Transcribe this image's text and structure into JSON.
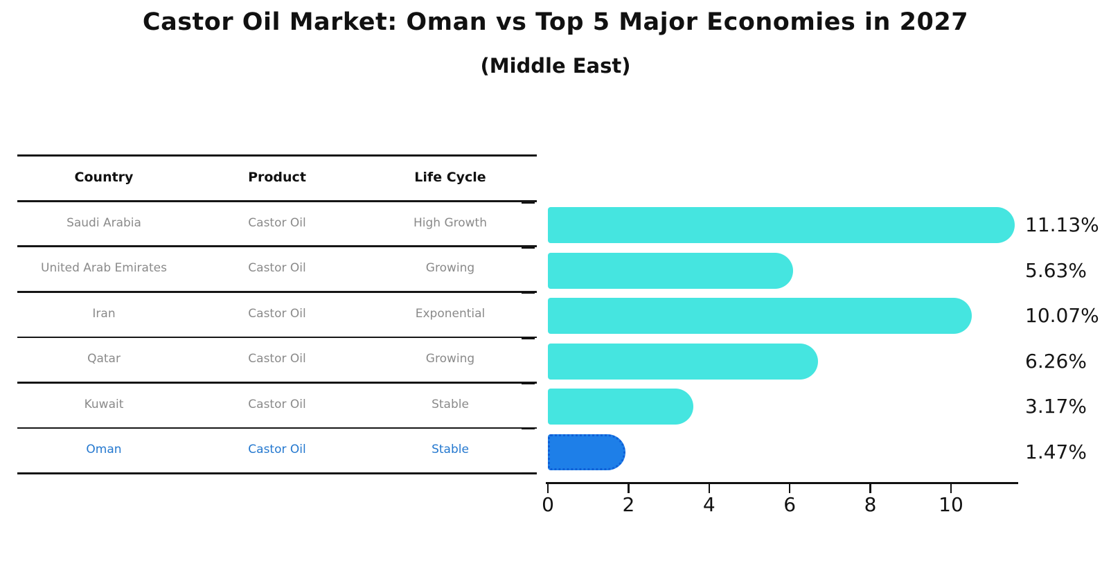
{
  "header": {
    "title": "Castor Oil Market: Oman vs Top 5 Major Economies in 2027",
    "subtitle": "(Middle East)"
  },
  "table": {
    "columns": [
      "Country",
      "Product",
      "Life Cycle"
    ],
    "rows": [
      {
        "country": "Saudi Arabia",
        "product": "Castor Oil",
        "life_cycle": "High Growth",
        "highlight": false
      },
      {
        "country": "United Arab Emirates",
        "product": "Castor Oil",
        "life_cycle": "Growing",
        "highlight": false
      },
      {
        "country": "Iran",
        "product": "Castor Oil",
        "life_cycle": "Exponential",
        "highlight": false
      },
      {
        "country": "Qatar",
        "product": "Castor Oil",
        "life_cycle": "Growing",
        "highlight": false
      },
      {
        "country": "Kuwait",
        "product": "Castor Oil",
        "life_cycle": "Stable",
        "highlight": false
      },
      {
        "country": "Oman",
        "product": "Castor Oil",
        "life_cycle": "Stable",
        "highlight": true
      }
    ]
  },
  "chart_data": {
    "type": "bar",
    "orientation": "horizontal",
    "title": "Castor Oil Market: Oman vs Top 5 Major Economies in 2027",
    "subtitle": "(Middle East)",
    "categories": [
      "Saudi Arabia",
      "United Arab Emirates",
      "Iran",
      "Qatar",
      "Kuwait",
      "Oman"
    ],
    "values": [
      11.13,
      5.63,
      10.07,
      6.26,
      3.17,
      1.47
    ],
    "value_labels": [
      "11.13%",
      "5.63%",
      "10.07%",
      "6.26%",
      "3.17%",
      "1.47%"
    ],
    "x_ticks": [
      0,
      2,
      4,
      6,
      8,
      10
    ],
    "xlim": [
      0,
      11.65
    ],
    "grid": false,
    "legend": "none",
    "highlight_index": 5,
    "bar_color": "#45e5e0",
    "highlight_bar_color": "#1e7fe8",
    "highlight_border_color": "#0f5fd7",
    "highlight_text_color": "#2478cf",
    "axis_color": "#111111",
    "row_text_color": "#8a8a8a"
  }
}
